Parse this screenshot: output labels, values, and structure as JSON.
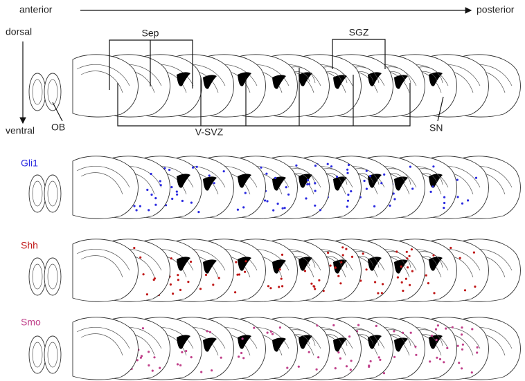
{
  "axes": {
    "start": "anterior",
    "end": "posterior",
    "top": "dorsal",
    "bottom": "ventral"
  },
  "regions": {
    "sep": "Sep",
    "sgz": "SGZ",
    "ob": "OB",
    "vsvz": "V-SVZ",
    "sn": "SN"
  },
  "rows": [
    {
      "label": "Gli1",
      "color": "#2a2ae0"
    },
    {
      "label": "Shh",
      "color": "#c01818"
    },
    {
      "label": "Smo",
      "color": "#c0408a"
    }
  ]
}
